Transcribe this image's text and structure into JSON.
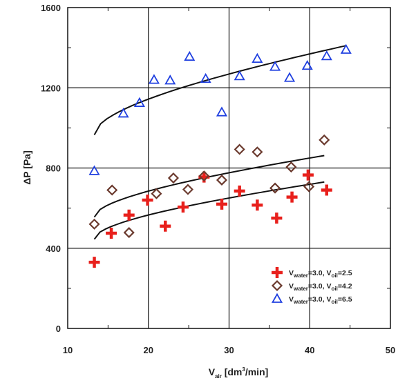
{
  "chart_data": {
    "type": "scatter",
    "title": "",
    "xlabel": {
      "main": "V",
      "sub": "air",
      "unit_pre": " [dm",
      "unit_sup": "3",
      "unit_post": "/min]"
    },
    "ylabel": "ΔP  [Pa]",
    "xlim": [
      10,
      50
    ],
    "ylim": [
      0,
      1600
    ],
    "x_ticks": [
      10,
      20,
      30,
      40,
      50
    ],
    "y_ticks": [
      0,
      400,
      800,
      1200,
      1600
    ],
    "x_ticks_labels": [
      "10",
      "20",
      "30",
      "40",
      "50"
    ],
    "y_ticks_labels": [
      "0",
      "400",
      "800",
      "1200",
      "1600"
    ],
    "grid": true,
    "legend_position": "bottom-right",
    "series": [
      {
        "legend": {
          "p1": "V",
          "s1": "water",
          "m": "=3.0, V",
          "s2": "oil",
          "e": "=2.5"
        },
        "marker": "plus",
        "color": "#e8201c",
        "points": [
          [
            13.3,
            330
          ],
          [
            15.4,
            475
          ],
          [
            17.6,
            565
          ],
          [
            19.9,
            640
          ],
          [
            22.1,
            510
          ],
          [
            24.3,
            605
          ],
          [
            26.9,
            755
          ],
          [
            29.1,
            620
          ],
          [
            31.3,
            685
          ],
          [
            33.5,
            615
          ],
          [
            35.9,
            550
          ],
          [
            37.8,
            655
          ],
          [
            39.8,
            765
          ],
          [
            42.1,
            690
          ]
        ],
        "fit": [
          [
            13.3,
            445
          ],
          [
            41.8,
            730
          ]
        ]
      },
      {
        "legend": {
          "p1": "V",
          "s1": "water",
          "m": "=3.0, V",
          "s2": "oil",
          "e": "=4.2"
        },
        "marker": "diamond",
        "color": "#6b3a2e",
        "points": [
          [
            13.3,
            520
          ],
          [
            15.5,
            690
          ],
          [
            17.6,
            478
          ],
          [
            21.0,
            672
          ],
          [
            23.1,
            750
          ],
          [
            24.9,
            693
          ],
          [
            26.9,
            760
          ],
          [
            29.1,
            740
          ],
          [
            31.3,
            893
          ],
          [
            33.5,
            880
          ],
          [
            35.7,
            700
          ],
          [
            37.7,
            805
          ],
          [
            39.9,
            707
          ],
          [
            41.8,
            940
          ]
        ],
        "fit": [
          [
            13.3,
            555
          ],
          [
            41.8,
            862
          ]
        ]
      },
      {
        "legend": {
          "p1": "V",
          "s1": "water",
          "m": "=3.0, V",
          "s2": "oil",
          "e": "=6.5"
        },
        "marker": "triangle",
        "color": "#2040e0",
        "points": [
          [
            13.3,
            785
          ],
          [
            16.9,
            1072
          ],
          [
            18.9,
            1125
          ],
          [
            20.7,
            1240
          ],
          [
            22.7,
            1237
          ],
          [
            25.1,
            1355
          ],
          [
            27.1,
            1245
          ],
          [
            29.1,
            1078
          ],
          [
            31.3,
            1258
          ],
          [
            33.5,
            1345
          ],
          [
            35.7,
            1305
          ],
          [
            37.5,
            1250
          ],
          [
            39.7,
            1310
          ],
          [
            42.1,
            1358
          ],
          [
            44.5,
            1390
          ]
        ],
        "fit": [
          [
            13.3,
            965
          ],
          [
            44.5,
            1410
          ]
        ]
      }
    ]
  }
}
